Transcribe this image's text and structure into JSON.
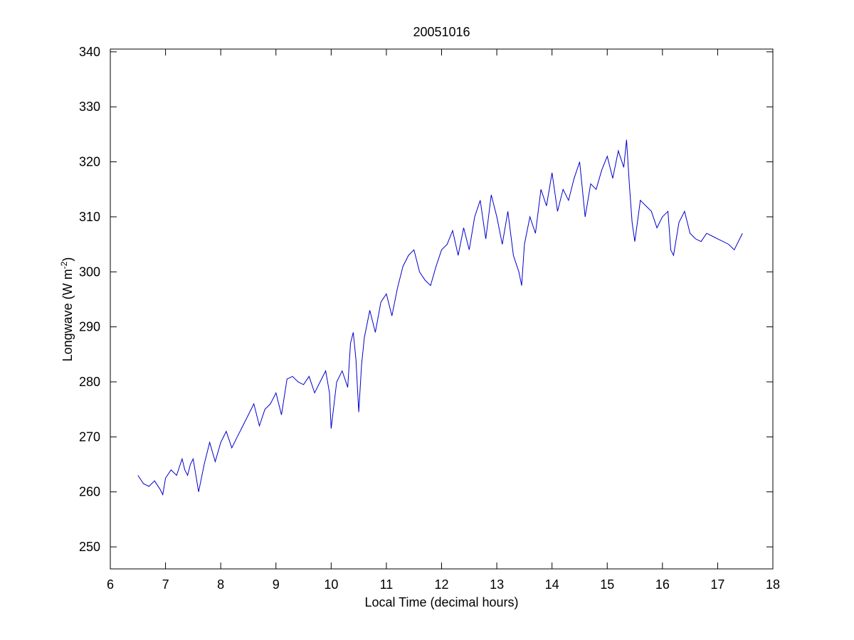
{
  "chart_data": {
    "type": "line",
    "title": "20051016",
    "xlabel": "Local Time (decimal hours)",
    "ylabel_main": "Longwave (W m",
    "ylabel_sup": "-2",
    "ylabel_close": ")",
    "xlim": [
      6,
      18
    ],
    "ylim": [
      246,
      340.5
    ],
    "xticks": [
      6,
      7,
      8,
      9,
      10,
      11,
      12,
      13,
      14,
      15,
      16,
      17,
      18
    ],
    "yticks": [
      250,
      260,
      270,
      280,
      290,
      300,
      310,
      320,
      330,
      340
    ],
    "grid": false,
    "line_color": "#0000cc",
    "series": [
      {
        "x": [
          6.5,
          6.6,
          6.7,
          6.8,
          6.9,
          6.95,
          7.0,
          7.1,
          7.2,
          7.3,
          7.35,
          7.4,
          7.45,
          7.5,
          7.6,
          7.7,
          7.8,
          7.9,
          8.0,
          8.1,
          8.2,
          8.3,
          8.4,
          8.5,
          8.6,
          8.7,
          8.8,
          8.9,
          9.0,
          9.1,
          9.2,
          9.3,
          9.4,
          9.5,
          9.6,
          9.7,
          9.8,
          9.9,
          9.97,
          10.0,
          10.1,
          10.2,
          10.3,
          10.35,
          10.4,
          10.45,
          10.5,
          10.55,
          10.6,
          10.7,
          10.8,
          10.9,
          11.0,
          11.1,
          11.2,
          11.3,
          11.4,
          11.5,
          11.6,
          11.7,
          11.8,
          11.9,
          12.0,
          12.1,
          12.2,
          12.3,
          12.4,
          12.5,
          12.6,
          12.7,
          12.8,
          12.9,
          13.0,
          13.1,
          13.2,
          13.3,
          13.4,
          13.45,
          13.5,
          13.6,
          13.7,
          13.8,
          13.9,
          14.0,
          14.1,
          14.2,
          14.3,
          14.4,
          14.5,
          14.6,
          14.7,
          14.8,
          14.9,
          15.0,
          15.1,
          15.2,
          15.3,
          15.35,
          15.4,
          15.45,
          15.5,
          15.6,
          15.7,
          15.8,
          15.9,
          16.0,
          16.1,
          16.15,
          16.2,
          16.3,
          16.4,
          16.5,
          16.6,
          16.7,
          16.8,
          16.9,
          17.0,
          17.1,
          17.2,
          17.3,
          17.4,
          17.45
        ],
        "y": [
          263,
          261.5,
          261,
          262,
          260.5,
          259.5,
          262.5,
          264,
          263,
          266,
          264,
          263,
          265,
          266,
          260,
          265,
          269,
          265.5,
          269,
          271,
          268,
          270,
          272,
          274,
          276,
          272,
          275,
          276,
          278,
          274,
          280.5,
          281,
          280,
          279.5,
          281,
          278,
          280,
          282,
          278,
          271.5,
          280,
          282,
          279,
          287,
          289,
          284,
          274.5,
          283,
          288,
          293,
          289,
          294.5,
          296,
          292,
          297,
          301,
          303,
          304,
          300,
          298.5,
          297.5,
          301,
          304,
          305,
          307.5,
          303,
          308,
          304,
          310,
          313,
          306,
          314,
          310,
          305,
          311,
          303,
          300,
          297.5,
          305,
          310,
          307,
          315,
          312,
          318,
          311,
          315,
          313,
          317,
          320,
          310,
          316,
          315,
          318.5,
          321,
          317,
          322,
          319,
          324,
          316,
          309,
          305.5,
          313,
          312,
          311,
          308,
          310,
          311,
          304,
          303,
          309,
          311,
          307,
          306,
          305.5,
          307,
          306.5,
          306,
          305.5,
          305,
          304,
          306,
          307
        ]
      }
    ]
  }
}
